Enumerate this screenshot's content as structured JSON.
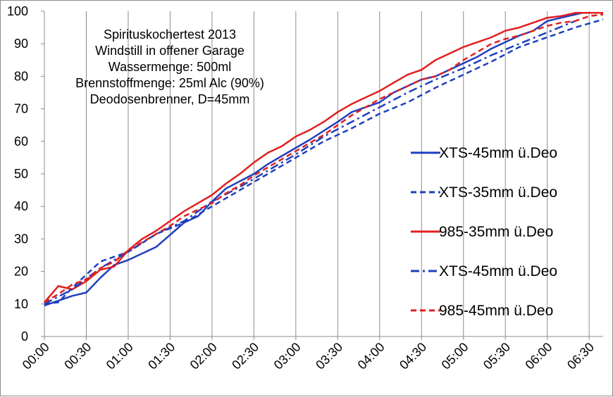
{
  "chart_data": {
    "type": "line",
    "title": "",
    "xlabel": "",
    "ylabel": "",
    "ylim": [
      0,
      100
    ],
    "yticks": [
      0,
      10,
      20,
      30,
      40,
      50,
      60,
      70,
      80,
      90,
      100
    ],
    "xlim": [
      0,
      400
    ],
    "xticks": [
      "00:00",
      "00:30",
      "01:00",
      "01:30",
      "02:00",
      "02:30",
      "03:00",
      "03:30",
      "04:00",
      "04:30",
      "05:00",
      "05:30",
      "06:00",
      "06:30"
    ],
    "grid": {
      "vertical": true,
      "horizontal": false
    },
    "legend_position": "right",
    "annotation": [
      "Spirituskochertest 2013",
      "Windstill in offener Garage",
      "Wassermenge: 500ml",
      "Brennstoffmenge: 25ml Alc (90%)",
      "Deodosenbrenner, D=45mm"
    ],
    "series": [
      {
        "name": "XTS-45mm ü.Deo",
        "color": "#1f3fbf",
        "dash": "solid",
        "x": [
          "00:00",
          "00:20",
          "00:30",
          "00:40",
          "00:50",
          "01:00",
          "01:20",
          "01:40",
          "01:50",
          "02:00",
          "02:10",
          "02:30",
          "02:40",
          "03:00",
          "03:10",
          "03:30",
          "03:40",
          "04:00",
          "04:05",
          "04:10",
          "04:30",
          "04:40",
          "05:00",
          "05:05",
          "05:10",
          "05:20",
          "05:35",
          "05:40",
          "05:50",
          "06:00",
          "06:10",
          "06:20",
          "06:25"
        ],
        "y": [
          9.5,
          12.5,
          13.5,
          18,
          22,
          23.5,
          27.5,
          35,
          37,
          41.5,
          45.5,
          50,
          53,
          58,
          60.5,
          66,
          69,
          72,
          73.5,
          75,
          79,
          80,
          84,
          85,
          86,
          88.5,
          91.5,
          92.5,
          94,
          97,
          98,
          99,
          99.5
        ]
      },
      {
        "name": "XTS-35mm ü.Deo",
        "color": "#1f3fbf",
        "dash": "dashed",
        "x": [
          "00:00",
          "00:10",
          "00:20",
          "00:30",
          "00:40",
          "01:00",
          "01:20",
          "01:40",
          "02:00",
          "02:20",
          "02:40",
          "03:00",
          "03:20",
          "03:40",
          "04:00",
          "04:20",
          "04:40",
          "05:00",
          "05:20",
          "05:40",
          "06:00",
          "06:20",
          "06:40"
        ],
        "y": [
          10,
          10.5,
          15,
          19,
          23,
          26,
          31.5,
          35,
          40,
          45,
          50,
          55,
          60,
          64,
          68.5,
          72,
          76.5,
          80.5,
          84.5,
          89,
          92,
          95,
          97.5
        ]
      },
      {
        "name": "985-35mm ü.Deo",
        "color": "#e0201f",
        "dash": "solid",
        "x": [
          "00:00",
          "00:10",
          "00:20",
          "00:30",
          "00:40",
          "00:50",
          "01:00",
          "01:10",
          "01:20",
          "01:30",
          "01:40",
          "01:50",
          "02:00",
          "02:10",
          "02:20",
          "02:30",
          "02:40",
          "02:50",
          "03:00",
          "03:10",
          "03:20",
          "03:30",
          "03:40",
          "03:50",
          "04:00",
          "04:10",
          "04:20",
          "04:30",
          "04:40",
          "04:50",
          "05:00",
          "05:10",
          "05:20",
          "05:30",
          "05:40",
          "05:50",
          "06:00",
          "06:10",
          "06:20",
          "06:30",
          "06:40"
        ],
        "y": [
          10.5,
          15.5,
          14.5,
          17,
          20.5,
          21.5,
          26.5,
          30,
          32.5,
          35.5,
          38.5,
          41,
          43.5,
          47,
          50,
          53.5,
          56.5,
          58.5,
          61.5,
          63.5,
          66,
          69,
          71.5,
          73.5,
          75.5,
          78,
          80.5,
          82,
          85,
          87,
          89,
          90.5,
          92,
          94,
          95,
          96.5,
          98,
          98.5,
          99.5,
          99.5,
          99.5
        ]
      },
      {
        "name": "XTS-45mm ü.Deo",
        "color": "#1f3fbf",
        "dash": "dashdot",
        "x": [
          "00:00",
          "00:20",
          "00:40",
          "01:00",
          "01:20",
          "01:40",
          "02:00",
          "02:20",
          "02:40",
          "03:00",
          "03:20",
          "03:40",
          "04:00",
          "04:20",
          "04:40",
          "05:00",
          "05:20",
          "05:40",
          "06:00",
          "06:20"
        ],
        "y": [
          10,
          14.5,
          21,
          26,
          31.5,
          35.5,
          41.5,
          46,
          51,
          56,
          61.5,
          66,
          70.5,
          75,
          79,
          82.5,
          86.5,
          90,
          93.5,
          97
        ]
      },
      {
        "name": "985-45mm ü.Deo",
        "color": "#e0201f",
        "dash": "dashed",
        "x": [
          "00:00",
          "00:10",
          "00:20",
          "00:30",
          "00:40",
          "00:50",
          "01:00",
          "01:10",
          "01:20",
          "01:30",
          "01:40",
          "01:50",
          "02:00",
          "02:10",
          "02:20",
          "02:30",
          "02:40",
          "02:50",
          "03:00",
          "03:10",
          "03:20",
          "03:30",
          "03:40",
          "03:50",
          "04:00",
          "04:10",
          "04:20",
          "04:30",
          "04:40",
          "04:50",
          "05:00",
          "05:10",
          "05:20",
          "05:30",
          "05:40",
          "05:50",
          "06:00",
          "06:10",
          "06:20",
          "06:30",
          "06:40"
        ],
        "y": [
          10.5,
          13,
          16,
          17.5,
          21,
          23,
          26.5,
          29,
          31.5,
          34,
          37,
          39,
          41,
          44,
          46.5,
          49.5,
          52,
          54.5,
          57,
          59.5,
          62,
          65,
          68,
          70.5,
          73,
          75,
          77,
          79,
          80,
          82,
          85,
          87.5,
          90,
          91.5,
          92.5,
          94,
          95.5,
          96.5,
          97,
          98.5,
          99
        ]
      }
    ]
  }
}
